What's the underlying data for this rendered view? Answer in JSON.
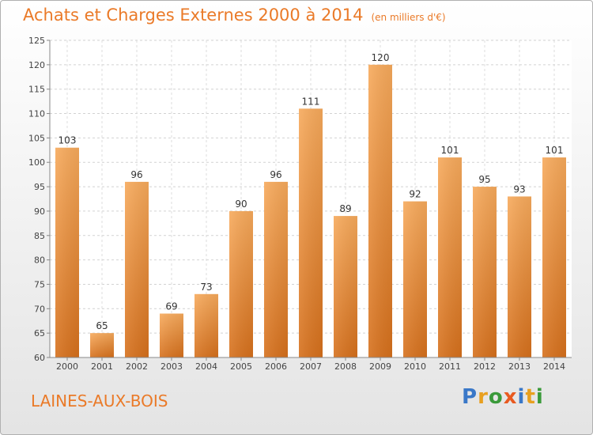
{
  "title": "Achats et Charges Externes 2000 à 2014",
  "subtitle": "(en milliers d'€)",
  "location": "LAINES-AUX-BOIS",
  "logo": {
    "text": "Proxiti",
    "letters": [
      {
        "ch": "P",
        "color": "#3a78c8"
      },
      {
        "ch": "r",
        "color": "#e8a020"
      },
      {
        "ch": "o",
        "color": "#3a9a3a"
      },
      {
        "ch": "x",
        "color": "#e85a20"
      },
      {
        "ch": "i",
        "color": "#3a78c8"
      },
      {
        "ch": "t",
        "color": "#e8a020"
      },
      {
        "ch": "i",
        "color": "#3a9a3a"
      }
    ]
  },
  "colors": {
    "accent": "#ea7a28",
    "bar_light": "#f5a556",
    "bar_dark": "#d8741e"
  },
  "chart_data": {
    "type": "bar",
    "categories": [
      "2000",
      "2001",
      "2002",
      "2003",
      "2004",
      "2005",
      "2006",
      "2007",
      "2008",
      "2009",
      "2010",
      "2011",
      "2012",
      "2013",
      "2014"
    ],
    "values": [
      103,
      65,
      96,
      69,
      73,
      90,
      96,
      111,
      89,
      120,
      92,
      101,
      95,
      93,
      101
    ],
    "title": "Achats et Charges Externes 2000 à 2014",
    "subtitle": "(en milliers d'€)",
    "ylim": [
      60,
      125
    ],
    "yticks": [
      60,
      65,
      70,
      75,
      80,
      85,
      90,
      95,
      100,
      105,
      110,
      115,
      120,
      125
    ],
    "grid": true
  }
}
